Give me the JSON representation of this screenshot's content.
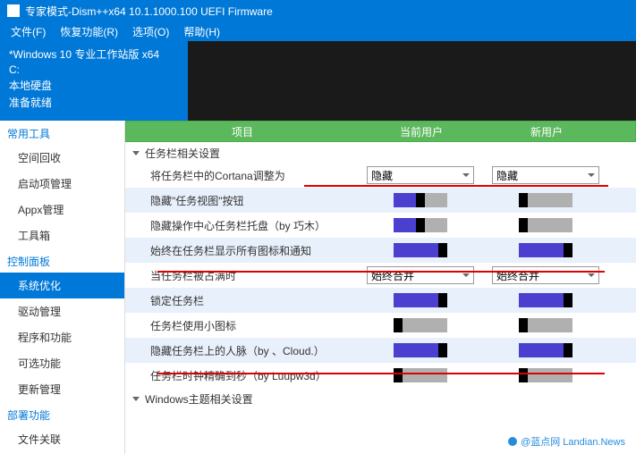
{
  "titlebar": {
    "title": "专家模式-Dism++x64 10.1.1000.100 UEFI Firmware"
  },
  "menubar": {
    "file": "文件(F)",
    "recover": "恢复功能(R)",
    "options": "选项(O)",
    "help": "帮助(H)"
  },
  "info": {
    "line1": "*Windows 10 专业工作站版 x64",
    "line2": "C:",
    "line3": "本地硬盘",
    "line4": "准备就绪"
  },
  "sidebar": {
    "cat1": "常用工具",
    "items1": [
      "空间回收",
      "启动项管理",
      "Appx管理",
      "工具箱"
    ],
    "cat2": "控制面板",
    "items2": [
      "系统优化",
      "驱动管理",
      "程序和功能",
      "可选功能",
      "更新管理"
    ],
    "cat3": "部署功能",
    "items3": [
      "文件关联"
    ],
    "selected": 0
  },
  "columns": {
    "c1": "项目",
    "c2": "当前用户",
    "c3": "新用户"
  },
  "group1": "任务栏相关设置",
  "rows": [
    {
      "label": "将任务栏中的Cortana调整为",
      "type": "combo",
      "cur": "隐藏",
      "new": "隐藏",
      "alt": false
    },
    {
      "label": "隐藏\"任务视图\"按钮",
      "type": "toggle",
      "cur": "half",
      "new": "off",
      "alt": true
    },
    {
      "label": "隐藏操作中心任务栏托盘（by 巧木）",
      "type": "toggle",
      "cur": "half",
      "new": "off",
      "alt": false
    },
    {
      "label": "始终在任务栏显示所有图标和通知",
      "type": "toggle",
      "cur": "on",
      "new": "on",
      "alt": true
    },
    {
      "label": "当任务栏被占满时",
      "type": "combo",
      "cur": "始终合并",
      "new": "始终合并",
      "alt": false
    },
    {
      "label": "锁定任务栏",
      "type": "toggle",
      "cur": "on",
      "new": "on",
      "alt": true
    },
    {
      "label": "任务栏使用小图标",
      "type": "toggle",
      "cur": "off",
      "new": "off",
      "alt": false
    },
    {
      "label": "隐藏任务栏上的人脉（by 、Cloud.）",
      "type": "toggle",
      "cur": "on",
      "new": "on",
      "alt": true
    },
    {
      "label": "任务栏时钟精确到秒（by Luupw3d）",
      "type": "toggle",
      "cur": "off",
      "new": "off",
      "alt": false
    }
  ],
  "group2": "Windows主题相关设置",
  "watermark": "@蓝点网 Landian.News",
  "colors": {
    "accent": "#0078d7",
    "headergreen": "#5cb85c",
    "toggleOn": "#4a3fcf",
    "toggleOff": "#b0b0b0",
    "altrow": "#e8f0fb",
    "annot": "#d00000"
  }
}
